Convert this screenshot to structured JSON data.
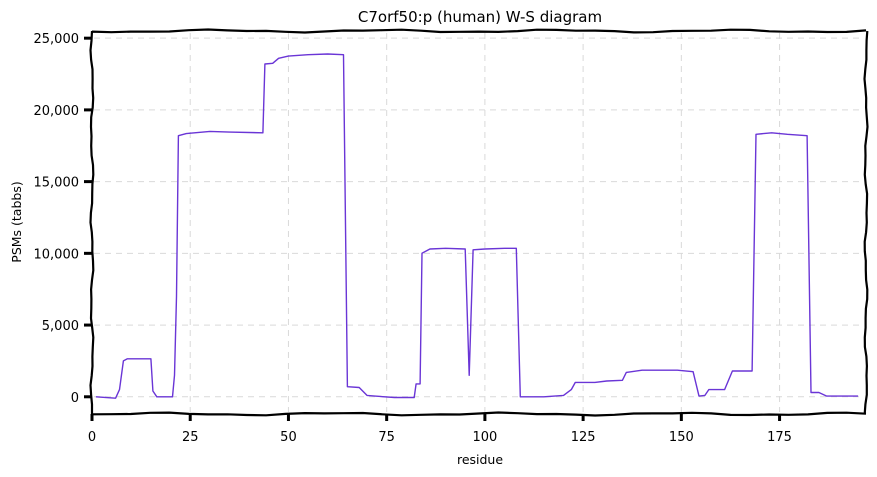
{
  "chart_data": {
    "type": "line",
    "title": "C7orf50:p (human) W-S diagram",
    "xlabel": "residue",
    "ylabel": "PSMs (tabbs)",
    "xlim": [
      0,
      197
    ],
    "ylim": [
      -1200,
      25500
    ],
    "x_ticks": [
      0,
      25,
      50,
      75,
      100,
      125,
      150,
      175
    ],
    "x_tick_labels": [
      "0",
      "25",
      "50",
      "75",
      "100",
      "125",
      "150",
      "175"
    ],
    "y_ticks": [
      0,
      5000,
      10000,
      15000,
      20000,
      25000
    ],
    "y_tick_labels": [
      "0",
      "5,000",
      "10,000",
      "15,000",
      "20,000",
      "25,000"
    ],
    "grid": true,
    "series": [
      {
        "color": "#6a35d6",
        "points": [
          [
            1,
            0
          ],
          [
            6,
            -100
          ],
          [
            7,
            500
          ],
          [
            8,
            2500
          ],
          [
            9,
            2650
          ],
          [
            15,
            2650
          ],
          [
            15.5,
            400
          ],
          [
            16.5,
            0
          ],
          [
            20.5,
            0
          ],
          [
            21,
            1500
          ],
          [
            21.5,
            7000
          ],
          [
            22,
            18200
          ],
          [
            24,
            18350
          ],
          [
            30,
            18500
          ],
          [
            35,
            18450
          ],
          [
            43.5,
            18400
          ],
          [
            44,
            23200
          ],
          [
            46,
            23250
          ],
          [
            47.5,
            23600
          ],
          [
            50,
            23750
          ],
          [
            55,
            23850
          ],
          [
            60,
            23900
          ],
          [
            64,
            23850
          ],
          [
            65,
            700
          ],
          [
            68,
            650
          ],
          [
            70,
            100
          ],
          [
            72,
            50
          ],
          [
            77,
            -50
          ],
          [
            82,
            -50
          ],
          [
            82.5,
            900
          ],
          [
            83.5,
            900
          ],
          [
            84,
            10000
          ],
          [
            86,
            10300
          ],
          [
            90,
            10350
          ],
          [
            95,
            10300
          ],
          [
            96,
            1500
          ],
          [
            97,
            10250
          ],
          [
            100,
            10300
          ],
          [
            105,
            10350
          ],
          [
            108,
            10350
          ],
          [
            109,
            0
          ],
          [
            115,
            0
          ],
          [
            120,
            100
          ],
          [
            122,
            500
          ],
          [
            123,
            1000
          ],
          [
            128,
            1000
          ],
          [
            131,
            1100
          ],
          [
            135,
            1150
          ],
          [
            136,
            1700
          ],
          [
            140,
            1850
          ],
          [
            145,
            1850
          ],
          [
            149,
            1850
          ],
          [
            153,
            1750
          ],
          [
            154.5,
            50
          ],
          [
            156,
            100
          ],
          [
            157,
            500
          ],
          [
            161,
            500
          ],
          [
            163,
            1800
          ],
          [
            168,
            1800
          ],
          [
            169,
            18300
          ],
          [
            173,
            18400
          ],
          [
            177,
            18300
          ],
          [
            182,
            18200
          ],
          [
            183,
            300
          ],
          [
            185,
            300
          ],
          [
            187,
            50
          ],
          [
            195,
            50
          ]
        ]
      }
    ]
  }
}
